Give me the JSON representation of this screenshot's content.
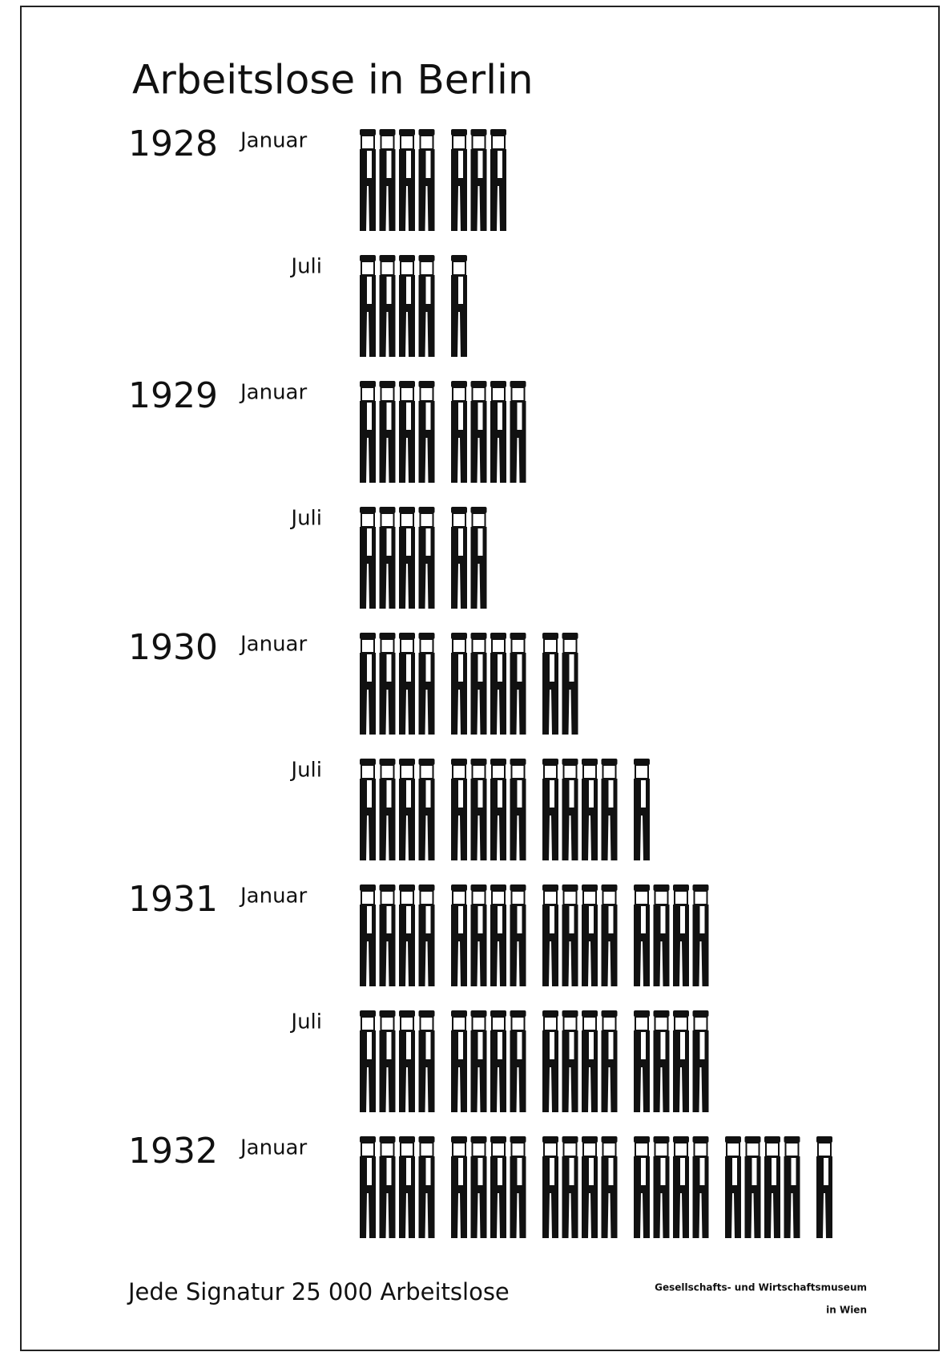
{
  "chart_data": {
    "type": "pictogram",
    "title": "Arbeitslose in Berlin",
    "years": [
      "1928",
      null,
      "1929",
      null,
      "1930",
      null,
      "1931",
      null,
      "1932"
    ],
    "categories": [
      "Januar",
      "Juli",
      "Januar",
      "Juli",
      "Januar",
      "Juli",
      "Januar",
      "Juli",
      "Januar"
    ],
    "values": [
      7,
      5,
      8,
      6,
      10,
      13,
      16,
      16,
      21
    ],
    "group_size": 4,
    "color": "#111111",
    "note": "Jede Signatur 25 000 Arbeitslose",
    "source": [
      "Gesellschafts- und Wirtschaftsmuseum",
      "in Wien"
    ]
  }
}
